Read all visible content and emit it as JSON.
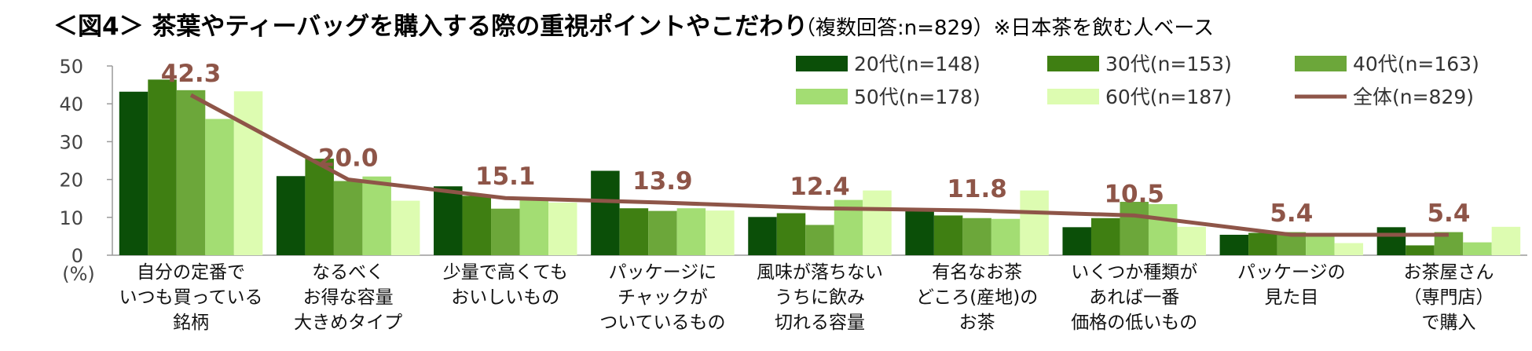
{
  "title": "＜図4＞ 茶葉やティーバッグを購入する際の重視ポイントやこだわり",
  "note": "（複数回答:n=829）※日本茶を飲む人ベース",
  "colors": {
    "20s": "#0b4f08",
    "30s": "#3f7f12",
    "40s": "#6ca73a",
    "50s": "#a3dd73",
    "60s": "#ddfcb1",
    "overall": "#8e5548"
  },
  "chart_data": {
    "type": "bar",
    "title": "＜図4＞ 茶葉やティーバッグを購入する際の重視ポイントやこだわり",
    "ylabel": "(%)",
    "ylim": [
      0,
      50
    ],
    "yticks": [
      0,
      10,
      20,
      30,
      40,
      50
    ],
    "grid": false,
    "legend_position": "top-right",
    "categories": [
      [
        "自分の定番で",
        "いつも買っている",
        "銘柄"
      ],
      [
        "なるべく",
        "お得な容量",
        "大きめタイプ"
      ],
      [
        "少量で高くても",
        "おいしいもの"
      ],
      [
        "パッケージに",
        "チャックが",
        "ついているもの"
      ],
      [
        "風味が落ちない",
        "うちに飲み",
        "切れる容量"
      ],
      [
        "有名なお茶",
        "どころ(産地)の",
        "お茶"
      ],
      [
        "いくつか種類が",
        "あれば一番",
        "価格の低いもの"
      ],
      [
        "パッケージの",
        "見た目"
      ],
      [
        "お茶屋さん",
        "（専門店）",
        "で購入"
      ]
    ],
    "series": [
      {
        "name": "20代(n=148)",
        "color_key": "20s",
        "values": [
          43.2,
          20.9,
          18.2,
          22.3,
          10.1,
          12.2,
          7.4,
          5.4,
          7.4
        ]
      },
      {
        "name": "30代(n=153)",
        "color_key": "30s",
        "values": [
          46.4,
          25.5,
          15.7,
          12.4,
          11.1,
          10.5,
          9.8,
          5.9,
          2.6
        ]
      },
      {
        "name": "40代(n=163)",
        "color_key": "40s",
        "values": [
          43.6,
          19.6,
          12.3,
          11.7,
          8.0,
          9.8,
          14.1,
          6.1,
          6.1
        ]
      },
      {
        "name": "50代(n=178)",
        "color_key": "50s",
        "values": [
          36.0,
          20.8,
          14.6,
          12.4,
          14.6,
          9.6,
          13.5,
          5.1,
          3.4
        ]
      },
      {
        "name": "60代(n=187)",
        "color_key": "60s",
        "values": [
          43.3,
          14.4,
          13.9,
          11.8,
          17.1,
          17.1,
          7.5,
          3.2,
          7.5
        ]
      }
    ],
    "line_series": {
      "name": "全体(n=829)",
      "color_key": "overall",
      "values": [
        42.3,
        20.0,
        15.1,
        13.9,
        12.4,
        11.8,
        10.5,
        5.4,
        5.4
      ],
      "labels": [
        "42.3",
        "20.0",
        "15.1",
        "13.9",
        "12.4",
        "11.8",
        "10.5",
        "5.4",
        "5.4"
      ]
    }
  }
}
